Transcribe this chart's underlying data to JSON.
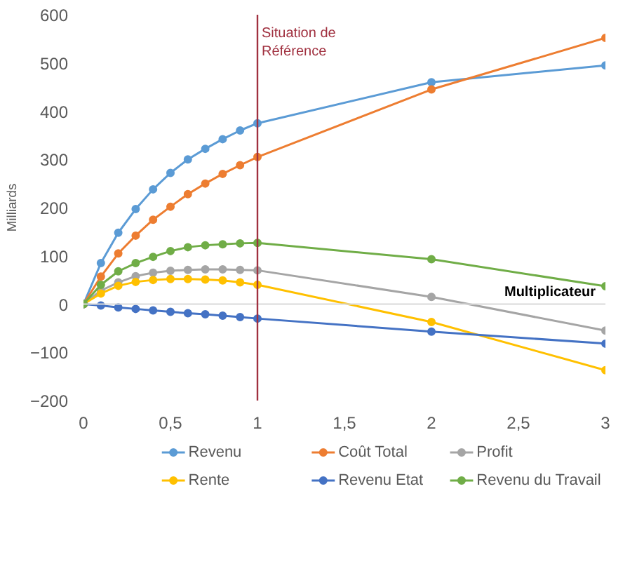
{
  "chart_data": {
    "type": "line",
    "xlabel": "Multiplicateur",
    "ylabel": "Milliards",
    "x": [
      0,
      0.1,
      0.2,
      0.3,
      0.4,
      0.5,
      0.6,
      0.7,
      0.8,
      0.9,
      1,
      2,
      3
    ],
    "series": [
      {
        "name": "Revenu",
        "color": "#5b9bd5",
        "values": [
          0,
          85,
          148,
          197,
          238,
          272,
          300,
          322,
          342,
          360,
          375,
          460,
          495
        ]
      },
      {
        "name": "Coût Total",
        "color": "#ed7d31",
        "values": [
          0,
          57,
          105,
          142,
          175,
          202,
          228,
          250,
          270,
          288,
          305,
          445,
          552
        ]
      },
      {
        "name": "Profit",
        "color": "#a5a5a5",
        "values": [
          0,
          28,
          45,
          58,
          65,
          69,
          71,
          72,
          72,
          71,
          70,
          15,
          -55
        ]
      },
      {
        "name": "Rente",
        "color": "#ffc000",
        "values": [
          0,
          22,
          38,
          46,
          50,
          52,
          52,
          51,
          49,
          45,
          40,
          -37,
          -137
        ]
      },
      {
        "name": "Revenu Etat",
        "color": "#4472c4",
        "values": [
          0,
          -3,
          -7,
          -10,
          -13,
          -16,
          -19,
          -21,
          -24,
          -27,
          -30,
          -57,
          -82
        ]
      },
      {
        "name": "Revenu du Travail",
        "color": "#70ad47",
        "values": [
          0,
          40,
          68,
          85,
          98,
          110,
          118,
          122,
          124,
          126,
          127,
          93,
          37
        ]
      }
    ],
    "xlim": [
      0,
      3
    ],
    "ylim": [
      -200,
      600
    ],
    "xticks": [
      0,
      {
        "value": 0.5,
        "label": "0,5"
      },
      1,
      {
        "value": 1.5,
        "label": "1,5"
      },
      2,
      {
        "value": 2.5,
        "label": "2,5"
      },
      3
    ],
    "yticks": [
      -200,
      -100,
      0,
      100,
      200,
      300,
      400,
      500,
      600
    ],
    "ref_lines": [
      {
        "axis": "x",
        "value": 1,
        "label": "Situation de Référence",
        "color": "#a0303f"
      }
    ],
    "marker": "circle",
    "line_style": "solid",
    "grid": false,
    "legend": "bottom"
  }
}
